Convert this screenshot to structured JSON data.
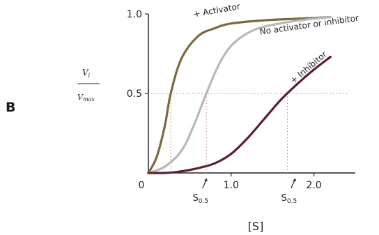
{
  "panel_label": "B",
  "chart_data": {
    "type": "line",
    "xlabel": "[S]",
    "ylabel": {
      "numerator": "V",
      "numerator_sub": "i",
      "denominator": "V",
      "denominator_sub": "max"
    },
    "xlim": [
      0,
      2.5
    ],
    "ylim": [
      0,
      1.0
    ],
    "x_ticks": [
      {
        "value": 0,
        "label": "0"
      },
      {
        "value": 1.0,
        "label": "1.0"
      },
      {
        "value": 2.0,
        "label": "2.0"
      }
    ],
    "y_ticks": [
      {
        "value": 0.5,
        "label": "0.5"
      },
      {
        "value": 1.0,
        "label": "1.0"
      }
    ],
    "reference_lines": [
      {
        "axis": "y",
        "value": 0.5,
        "style": "dotted"
      }
    ],
    "colors": {
      "activator": "#7a6a40",
      "noeffector": "#b8b8b8",
      "inhibitor": "#5a1f2a",
      "guide": "#b87a6a"
    },
    "series": [
      {
        "name": "+ Activator",
        "key": "activator",
        "x": [
          0,
          0.1,
          0.2,
          0.27,
          0.4,
          0.6,
          0.8,
          1.0,
          1.4,
          1.8,
          2.2
        ],
        "y": [
          0,
          0.1,
          0.3,
          0.5,
          0.72,
          0.86,
          0.91,
          0.94,
          0.96,
          0.97,
          0.98
        ]
      },
      {
        "name": "No activator or inhibitor",
        "key": "noeffector",
        "x": [
          0,
          0.2,
          0.4,
          0.55,
          0.7,
          0.85,
          1.0,
          1.2,
          1.4,
          1.7,
          2.0,
          2.2
        ],
        "y": [
          0,
          0.04,
          0.14,
          0.3,
          0.5,
          0.68,
          0.8,
          0.88,
          0.92,
          0.95,
          0.97,
          0.98
        ]
      },
      {
        "name": "+ Inhibitor",
        "key": "inhibitor",
        "x": [
          0,
          0.2,
          0.4,
          0.6,
          0.8,
          1.0,
          1.2,
          1.4,
          1.6,
          1.8,
          2.0,
          2.2
        ],
        "y": [
          0,
          0.0,
          0.01,
          0.03,
          0.06,
          0.12,
          0.22,
          0.34,
          0.46,
          0.56,
          0.65,
          0.73
        ]
      }
    ],
    "half_saturation_markers": [
      {
        "label": "S",
        "sub": "0.5",
        "x": 0.68
      },
      {
        "label": "S",
        "sub": "0.5",
        "x": 1.75
      }
    ]
  }
}
